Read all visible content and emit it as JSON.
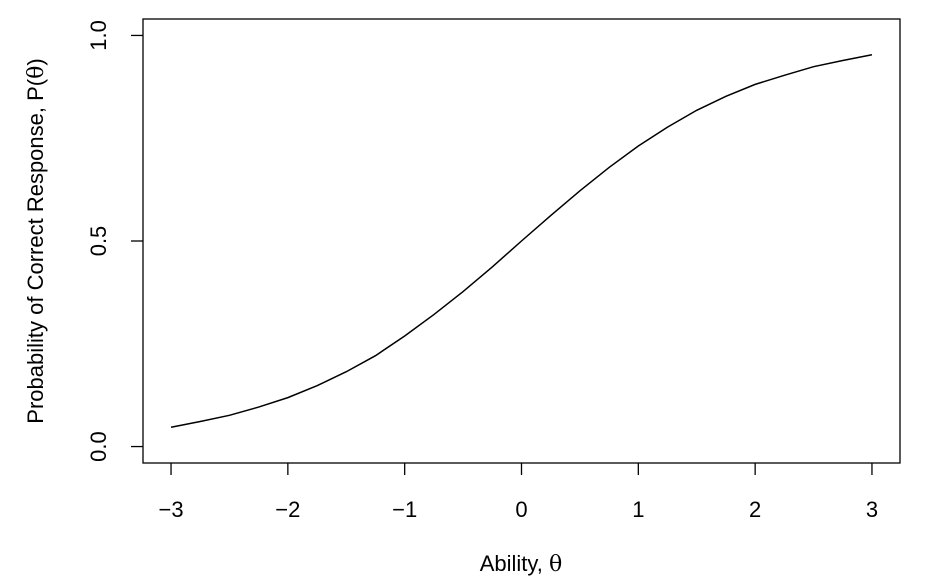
{
  "chart_data": {
    "type": "line",
    "title": "",
    "xlabel": "Ability, θ",
    "ylabel": "Probability of Correct Response, P(θ)",
    "xlim": [
      -3.24,
      3.24
    ],
    "ylim": [
      -0.04,
      1.04
    ],
    "x_ticks": [
      -3,
      -2,
      -1,
      0,
      1,
      2,
      3
    ],
    "x_tick_labels": [
      "−3",
      "−2",
      "−1",
      "0",
      "1",
      "2",
      "3"
    ],
    "y_ticks": [
      0.0,
      0.5,
      1.0
    ],
    "y_tick_labels": [
      "0.0",
      "0.5",
      "1.0"
    ],
    "grid": false,
    "legend": "none",
    "series": [
      {
        "color": "#000000",
        "x": [
          -3.0,
          -2.75,
          -2.5,
          -2.25,
          -2.0,
          -1.75,
          -1.5,
          -1.25,
          -1.0,
          -0.75,
          -0.5,
          -0.25,
          0.0,
          0.25,
          0.5,
          0.75,
          1.0,
          1.25,
          1.5,
          1.75,
          2.0,
          2.25,
          2.5,
          2.75,
          3.0
        ],
        "y": [
          0.047,
          0.061,
          0.076,
          0.096,
          0.119,
          0.148,
          0.182,
          0.221,
          0.269,
          0.321,
          0.377,
          0.437,
          0.5,
          0.562,
          0.622,
          0.679,
          0.731,
          0.777,
          0.818,
          0.852,
          0.881,
          0.903,
          0.924,
          0.939,
          0.953
        ]
      }
    ]
  }
}
